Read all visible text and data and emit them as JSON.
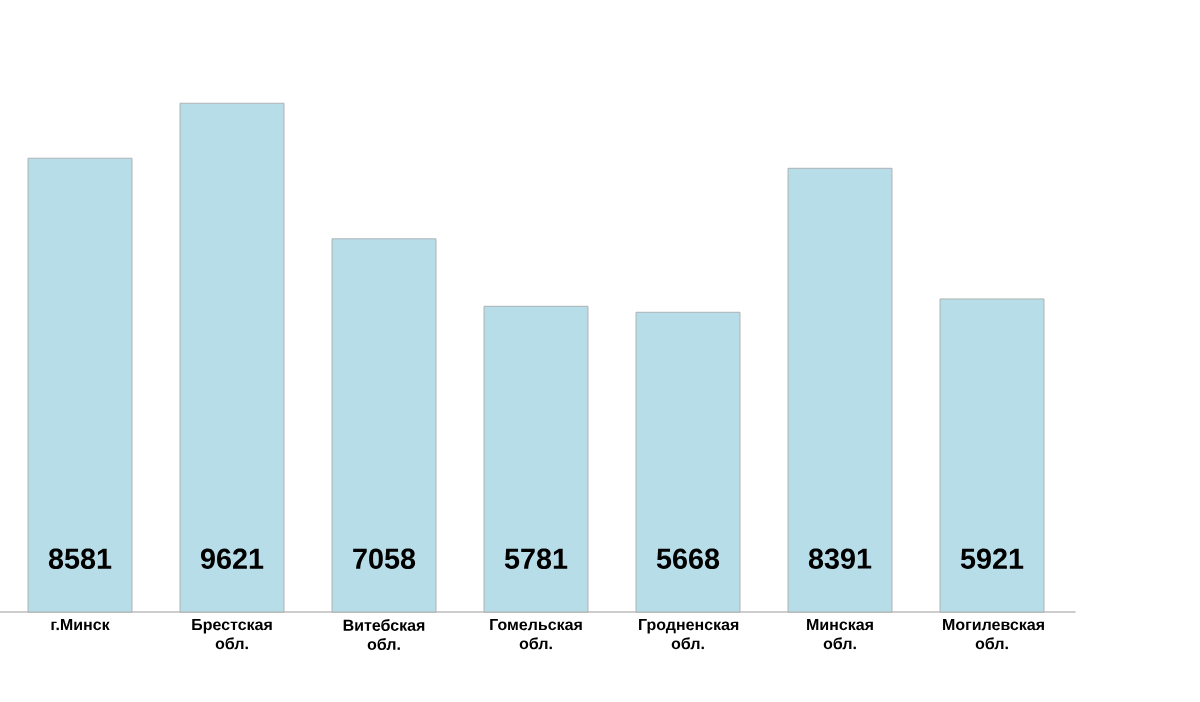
{
  "chart_data": {
    "type": "bar",
    "categories": [
      "г.Минск",
      "Брестская обл.",
      "Витебская обл.",
      "Гомельская обл.",
      "Гродненская обл.",
      "Минская обл.",
      "Могилевская обл."
    ],
    "values": [
      8581,
      9621,
      7058,
      5781,
      5668,
      8391,
      5921
    ],
    "color": "#b7dde8",
    "data_labels": true
  }
}
